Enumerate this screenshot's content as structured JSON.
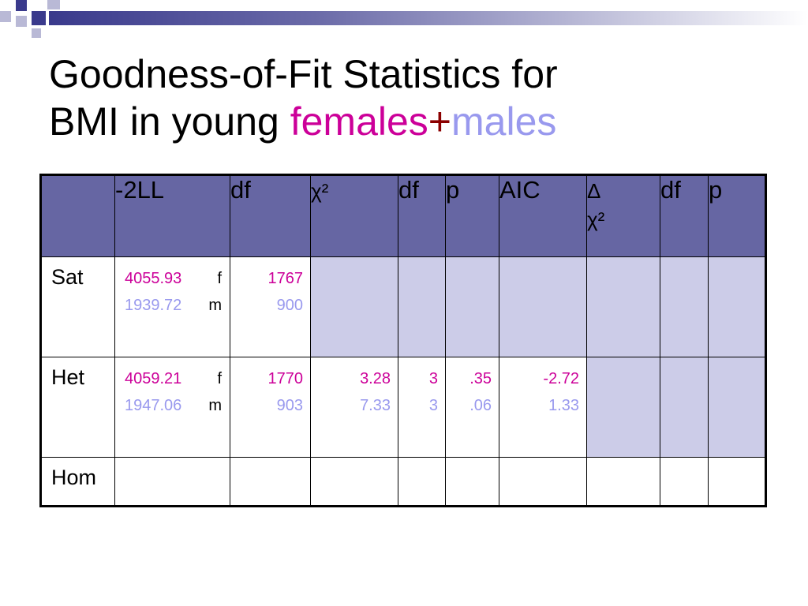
{
  "title": {
    "line1": "Goodness-of-Fit Statistics for",
    "line2_prefix": "BMI in young ",
    "females": "females",
    "plus": "+",
    "males": "males"
  },
  "table": {
    "headers": [
      "",
      "-2LL",
      "df",
      "χ²",
      "df",
      "p",
      "AIC",
      "Δ",
      "df",
      "p"
    ],
    "header_delta_sub": "χ²",
    "rows": [
      {
        "label": "Sat",
        "ll_f": "4055.93",
        "ll_f_sfx": "f",
        "ll_m": "1939.72",
        "ll_m_sfx": "m",
        "df_f": "1767",
        "df_m": "900"
      },
      {
        "label": "Het",
        "ll_f": "4059.21",
        "ll_f_sfx": "f",
        "ll_m": "1947.06",
        "ll_m_sfx": "m",
        "df_f": "1770",
        "df_m": "903",
        "chi_f": "3.28",
        "chi_m": "7.33",
        "df2_f": "3",
        "df2_m": "3",
        "p_f": ".35",
        "p_m": ".06",
        "aic_f": "-2.72",
        "aic_m": "1.33"
      },
      {
        "label": "Hom"
      }
    ]
  },
  "colors": {
    "header_bg": "#6666a3",
    "shade_bg": "#cccce8",
    "female": "#cc0099",
    "male": "#9999ee",
    "plus": "#8b0000"
  }
}
